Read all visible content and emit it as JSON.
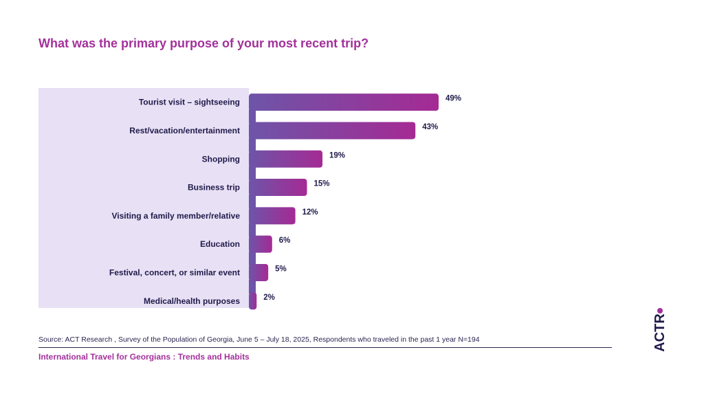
{
  "title": "What was the primary purpose of your most recent trip?",
  "source": "Source: ACT Research , Survey of the Population of Georgia, June 5 – July 18, 2025, Respondents who traveled in the past 1 year N=194",
  "footer": "International Travel for Georgians : Trends and Habits",
  "logo_text": "ACTR.",
  "colors": {
    "title": "#a3309a",
    "panel": "#e8e0f4",
    "bar_start": "#6d55a8",
    "bar_end": "#a52a94",
    "text": "#1f1a4a"
  },
  "chart_data": {
    "type": "bar",
    "orientation": "horizontal",
    "categories": [
      "Tourist visit – sightseeing",
      "Rest/vacation/entertainment",
      "Shopping",
      "Business trip",
      "Visiting a family member/relative",
      "Education",
      "Festival, concert, or similar event",
      "Medical/health purposes"
    ],
    "values": [
      49,
      43,
      19,
      15,
      12,
      6,
      5,
      2
    ],
    "value_labels": [
      "49%",
      "43%",
      "19%",
      "15%",
      "12%",
      "6%",
      "5%",
      "2%"
    ],
    "unit": "%",
    "xlim": [
      0,
      49
    ],
    "grid": false,
    "legend": "none"
  }
}
